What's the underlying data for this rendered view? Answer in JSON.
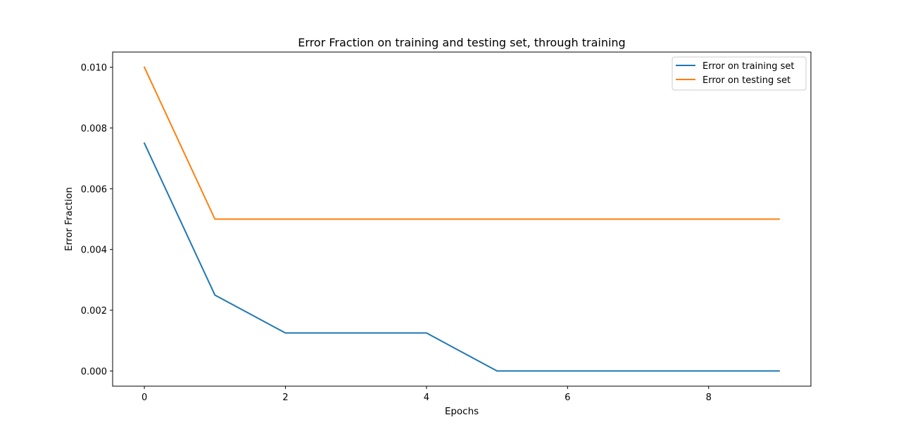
{
  "chart_data": {
    "type": "line",
    "title": "Error Fraction on training and testing set, through training",
    "xlabel": "Epochs",
    "ylabel": "Error Fraction",
    "x": [
      0,
      1,
      2,
      3,
      4,
      5,
      6,
      7,
      8,
      9
    ],
    "series": [
      {
        "name": "Error on training set",
        "color": "#1f77b4",
        "values": [
          0.0075,
          0.0025,
          0.00125,
          0.00125,
          0.00125,
          0.0,
          0.0,
          0.0,
          0.0,
          0.0
        ]
      },
      {
        "name": "Error on testing set",
        "color": "#ff7f0e",
        "values": [
          0.01,
          0.005,
          0.005,
          0.005,
          0.005,
          0.005,
          0.005,
          0.005,
          0.005,
          0.005
        ]
      }
    ],
    "xlim": [
      -0.45,
      9.45
    ],
    "ylim": [
      -0.0005,
      0.0105
    ],
    "xticks": [
      0,
      2,
      4,
      6,
      8
    ],
    "xtick_labels": [
      "0",
      "2",
      "4",
      "6",
      "8"
    ],
    "yticks": [
      0.0,
      0.002,
      0.004,
      0.006,
      0.008,
      0.01
    ],
    "ytick_labels": [
      "0.000",
      "0.002",
      "0.004",
      "0.006",
      "0.008",
      "0.010"
    ],
    "grid": false,
    "legend_position": "top-right"
  }
}
